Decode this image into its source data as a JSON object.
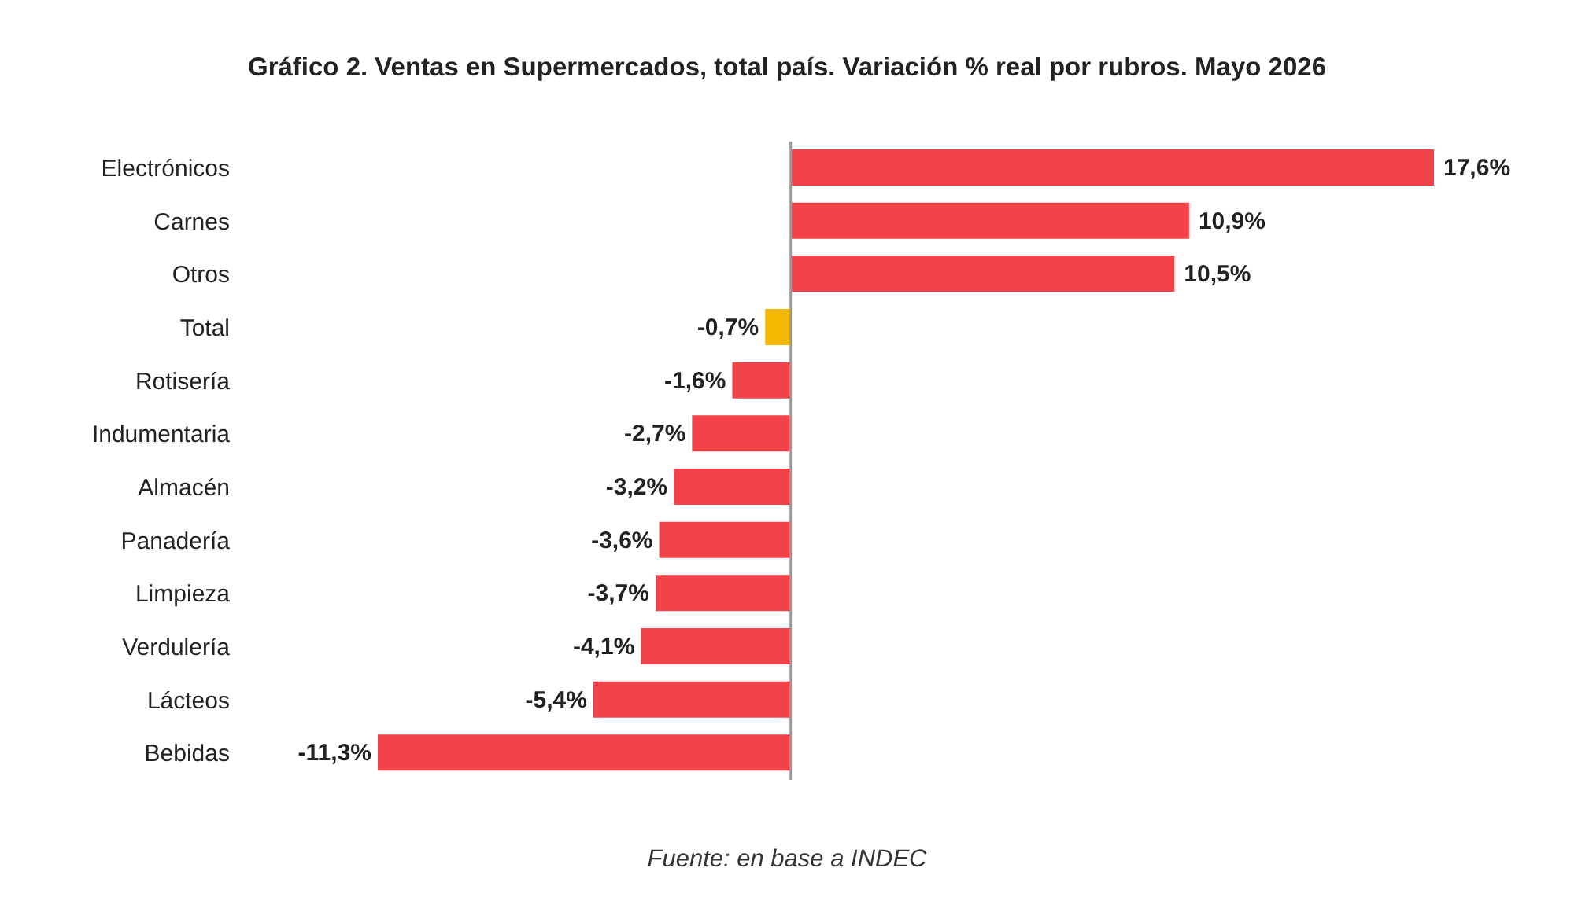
{
  "chart_data": {
    "type": "bar",
    "orientation": "horizontal",
    "title": "Gráfico 2. Ventas en Supermercados, total país. Variación % real por rubros. Mayo 2026",
    "categories": [
      "Electrónicos",
      "Carnes",
      "Otros",
      "Total",
      "Rotisería",
      "Indumentaria",
      "Almacén",
      "Panadería",
      "Limpieza",
      "Verdulería",
      "Lácteos",
      "Bebidas"
    ],
    "values": [
      17.6,
      10.9,
      10.5,
      -0.7,
      -1.6,
      -2.7,
      -3.2,
      -3.6,
      -3.7,
      -4.1,
      -5.4,
      -11.3
    ],
    "value_labels": [
      "17,6%",
      "10,9%",
      "10,5%",
      "-0,7%",
      "-1,6%",
      "-2,7%",
      "-3,2%",
      "-3,6%",
      "-3,7%",
      "-4,1%",
      "-5,4%",
      "-11,3%"
    ],
    "colors": [
      "#f2434b",
      "#f2434b",
      "#f2434b",
      "#f5b800",
      "#f2434b",
      "#f2434b",
      "#f2434b",
      "#f2434b",
      "#f2434b",
      "#f2434b",
      "#f2434b",
      "#f2434b"
    ],
    "ref_lines": [
      {
        "axis": "x",
        "value": 0,
        "color": "#999999"
      }
    ],
    "annotations": [
      "Fuente: en base a INDEC"
    ],
    "legend": false,
    "grid": false
  }
}
